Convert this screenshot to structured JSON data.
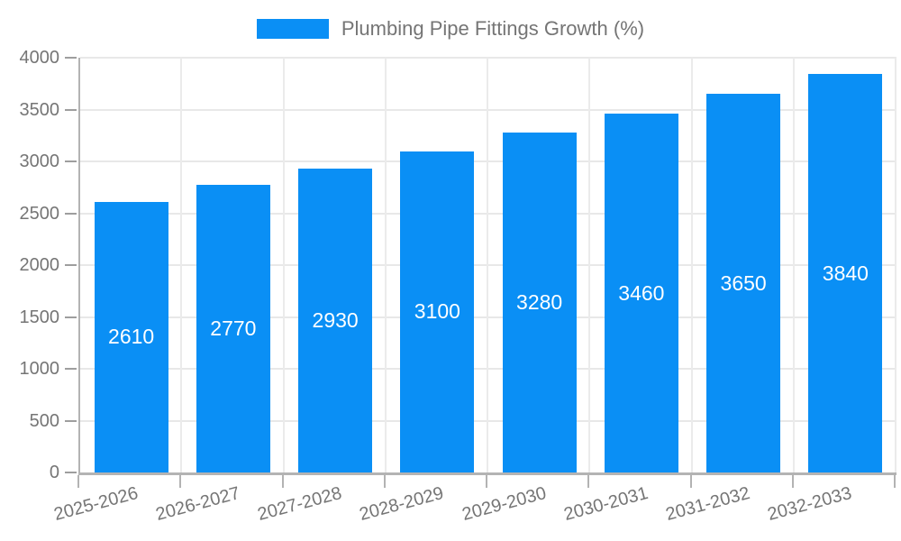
{
  "legend": {
    "label": "Plumbing Pipe Fittings Growth (%)"
  },
  "colors": {
    "bar": "#0a8ff5",
    "axis_text": "#757575",
    "grid_line": "#e8e8e8",
    "axis_line": "#b3b3b3",
    "value_label": "#ffffff"
  },
  "chart_data": {
    "type": "bar",
    "title": "Plumbing Pipe Fittings Growth (%)",
    "categories": [
      "2025-2026",
      "2026-2027",
      "2027-2028",
      "2028-2029",
      "2029-2030",
      "2030-2031",
      "2031-2032",
      "2032-2033"
    ],
    "values": [
      2610,
      2770,
      2930,
      3100,
      3280,
      3460,
      3650,
      3840
    ],
    "value_labels_shown": true,
    "value_label_position": "inside-center",
    "xlabel": "",
    "ylabel": "",
    "ylim": [
      0,
      4000
    ],
    "ytick_interval": 500,
    "yticks": [
      "0",
      "500",
      "1000",
      "1500",
      "2000",
      "2500",
      "3000",
      "3500",
      "4000"
    ],
    "grid": true,
    "legend_position": "top",
    "bar_color": "#0a8ff5"
  }
}
